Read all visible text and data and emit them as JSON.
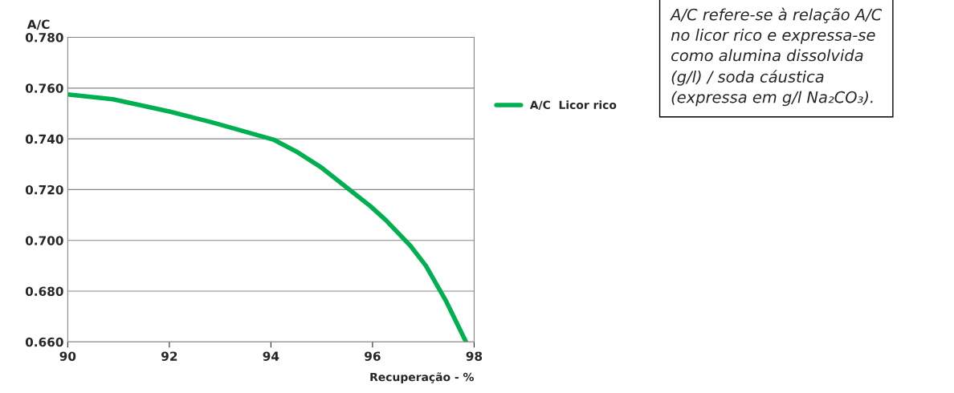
{
  "chart_data": {
    "type": "line",
    "xlabel": "Recuperação - %",
    "ylabel": "A/C",
    "x": [
      90,
      90.89,
      92,
      92.86,
      94.05,
      94.5,
      95,
      95.95,
      96.26,
      96.74,
      97.05,
      97.45,
      97.84
    ],
    "series": [
      {
        "name": "A/C  Licor rico",
        "color": "#00b050",
        "values": [
          0.7575,
          0.7556,
          0.7508,
          0.7464,
          0.7397,
          0.735,
          0.7286,
          0.7136,
          0.708,
          0.698,
          0.69,
          0.676,
          0.66
        ]
      }
    ],
    "xlim": [
      90,
      98
    ],
    "xticks": [
      90,
      92,
      94,
      96,
      98
    ],
    "ylim": [
      0.66,
      0.78
    ],
    "yticks": [
      {
        "value": 0.66,
        "label": "0.660"
      },
      {
        "value": 0.68,
        "label": "0.680"
      },
      {
        "value": 0.7,
        "label": "0.700"
      },
      {
        "value": 0.72,
        "label": "0.720"
      },
      {
        "value": 0.74,
        "label": "0.740"
      },
      {
        "value": 0.76,
        "label": "0.760"
      },
      {
        "value": 0.78,
        "label": "0.780"
      }
    ],
    "grid": "y",
    "legend": "right",
    "marker": "none",
    "line_style": "solid",
    "annotations": [
      "A/C refere-se à relação A/C\nno licor rico e expressa-se\ncomo alumina dissolvida\n(g/l) / soda cáustica\n(expressa em g/l Na₂CO₃)."
    ]
  }
}
